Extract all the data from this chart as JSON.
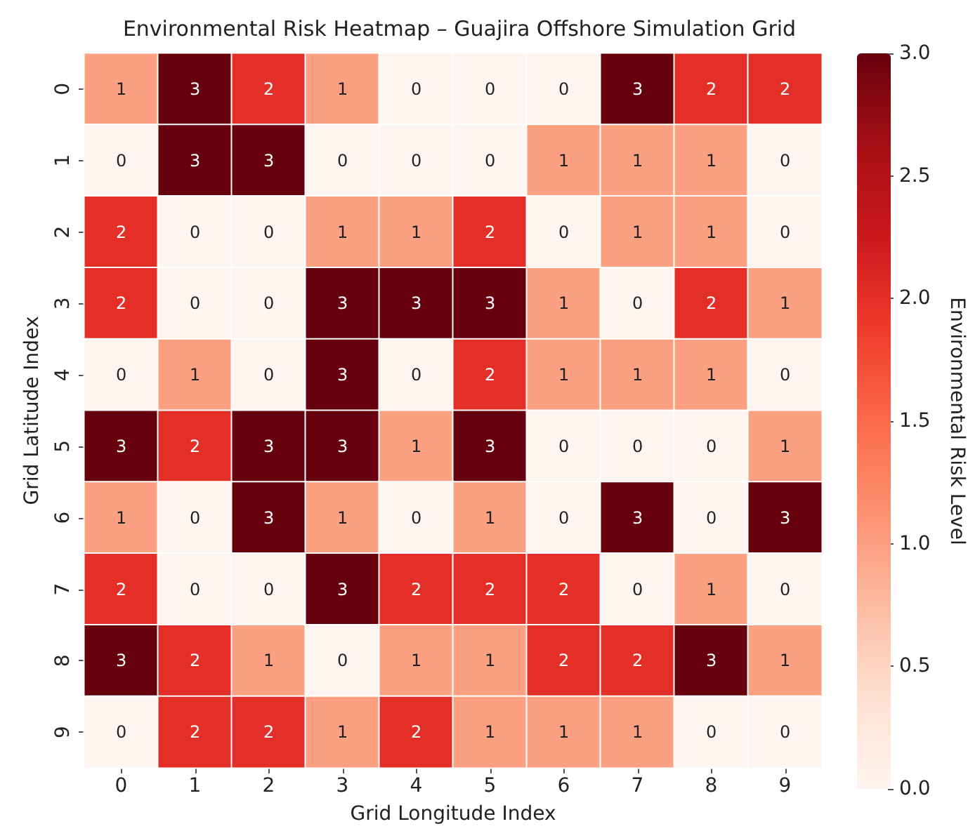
{
  "chart_data": {
    "type": "heatmap",
    "title": "Environmental Risk Heatmap – Guajira Offshore Simulation Grid",
    "xlabel": "Grid Longitude Index",
    "ylabel": "Grid Latitude Index",
    "clabel": "Environmental Risk Level",
    "categories": [
      "0",
      "1",
      "2",
      "3",
      "4",
      "5",
      "6",
      "7",
      "8",
      "9"
    ],
    "y_categories": [
      "0",
      "1",
      "2",
      "3",
      "4",
      "5",
      "6",
      "7",
      "8",
      "9"
    ],
    "cells": [
      [
        1,
        3,
        2,
        1,
        0,
        0,
        0,
        3,
        2,
        2
      ],
      [
        0,
        3,
        3,
        0,
        0,
        0,
        1,
        1,
        1,
        0
      ],
      [
        2,
        0,
        0,
        1,
        1,
        2,
        0,
        1,
        1,
        0
      ],
      [
        2,
        0,
        0,
        3,
        3,
        3,
        1,
        0,
        2,
        1
      ],
      [
        0,
        1,
        0,
        3,
        0,
        2,
        1,
        1,
        1,
        0
      ],
      [
        3,
        2,
        3,
        3,
        1,
        3,
        0,
        0,
        0,
        1
      ],
      [
        1,
        0,
        3,
        1,
        0,
        1,
        0,
        3,
        0,
        3
      ],
      [
        2,
        0,
        0,
        3,
        2,
        2,
        2,
        0,
        1,
        0
      ],
      [
        3,
        2,
        1,
        0,
        1,
        1,
        2,
        2,
        3,
        1
      ],
      [
        0,
        2,
        2,
        1,
        2,
        1,
        1,
        1,
        0,
        0
      ]
    ],
    "data_labels": true,
    "clim": [
      0,
      3
    ],
    "cticks": [
      {
        "value": 0,
        "label": "0.0"
      },
      {
        "value": 0.5,
        "label": "0.5"
      },
      {
        "value": 1,
        "label": "1.0"
      },
      {
        "value": 1.5,
        "label": "1.5"
      },
      {
        "value": 2,
        "label": "2.0"
      },
      {
        "value": 2.5,
        "label": "2.5"
      },
      {
        "value": 3,
        "label": "3.0"
      }
    ]
  }
}
